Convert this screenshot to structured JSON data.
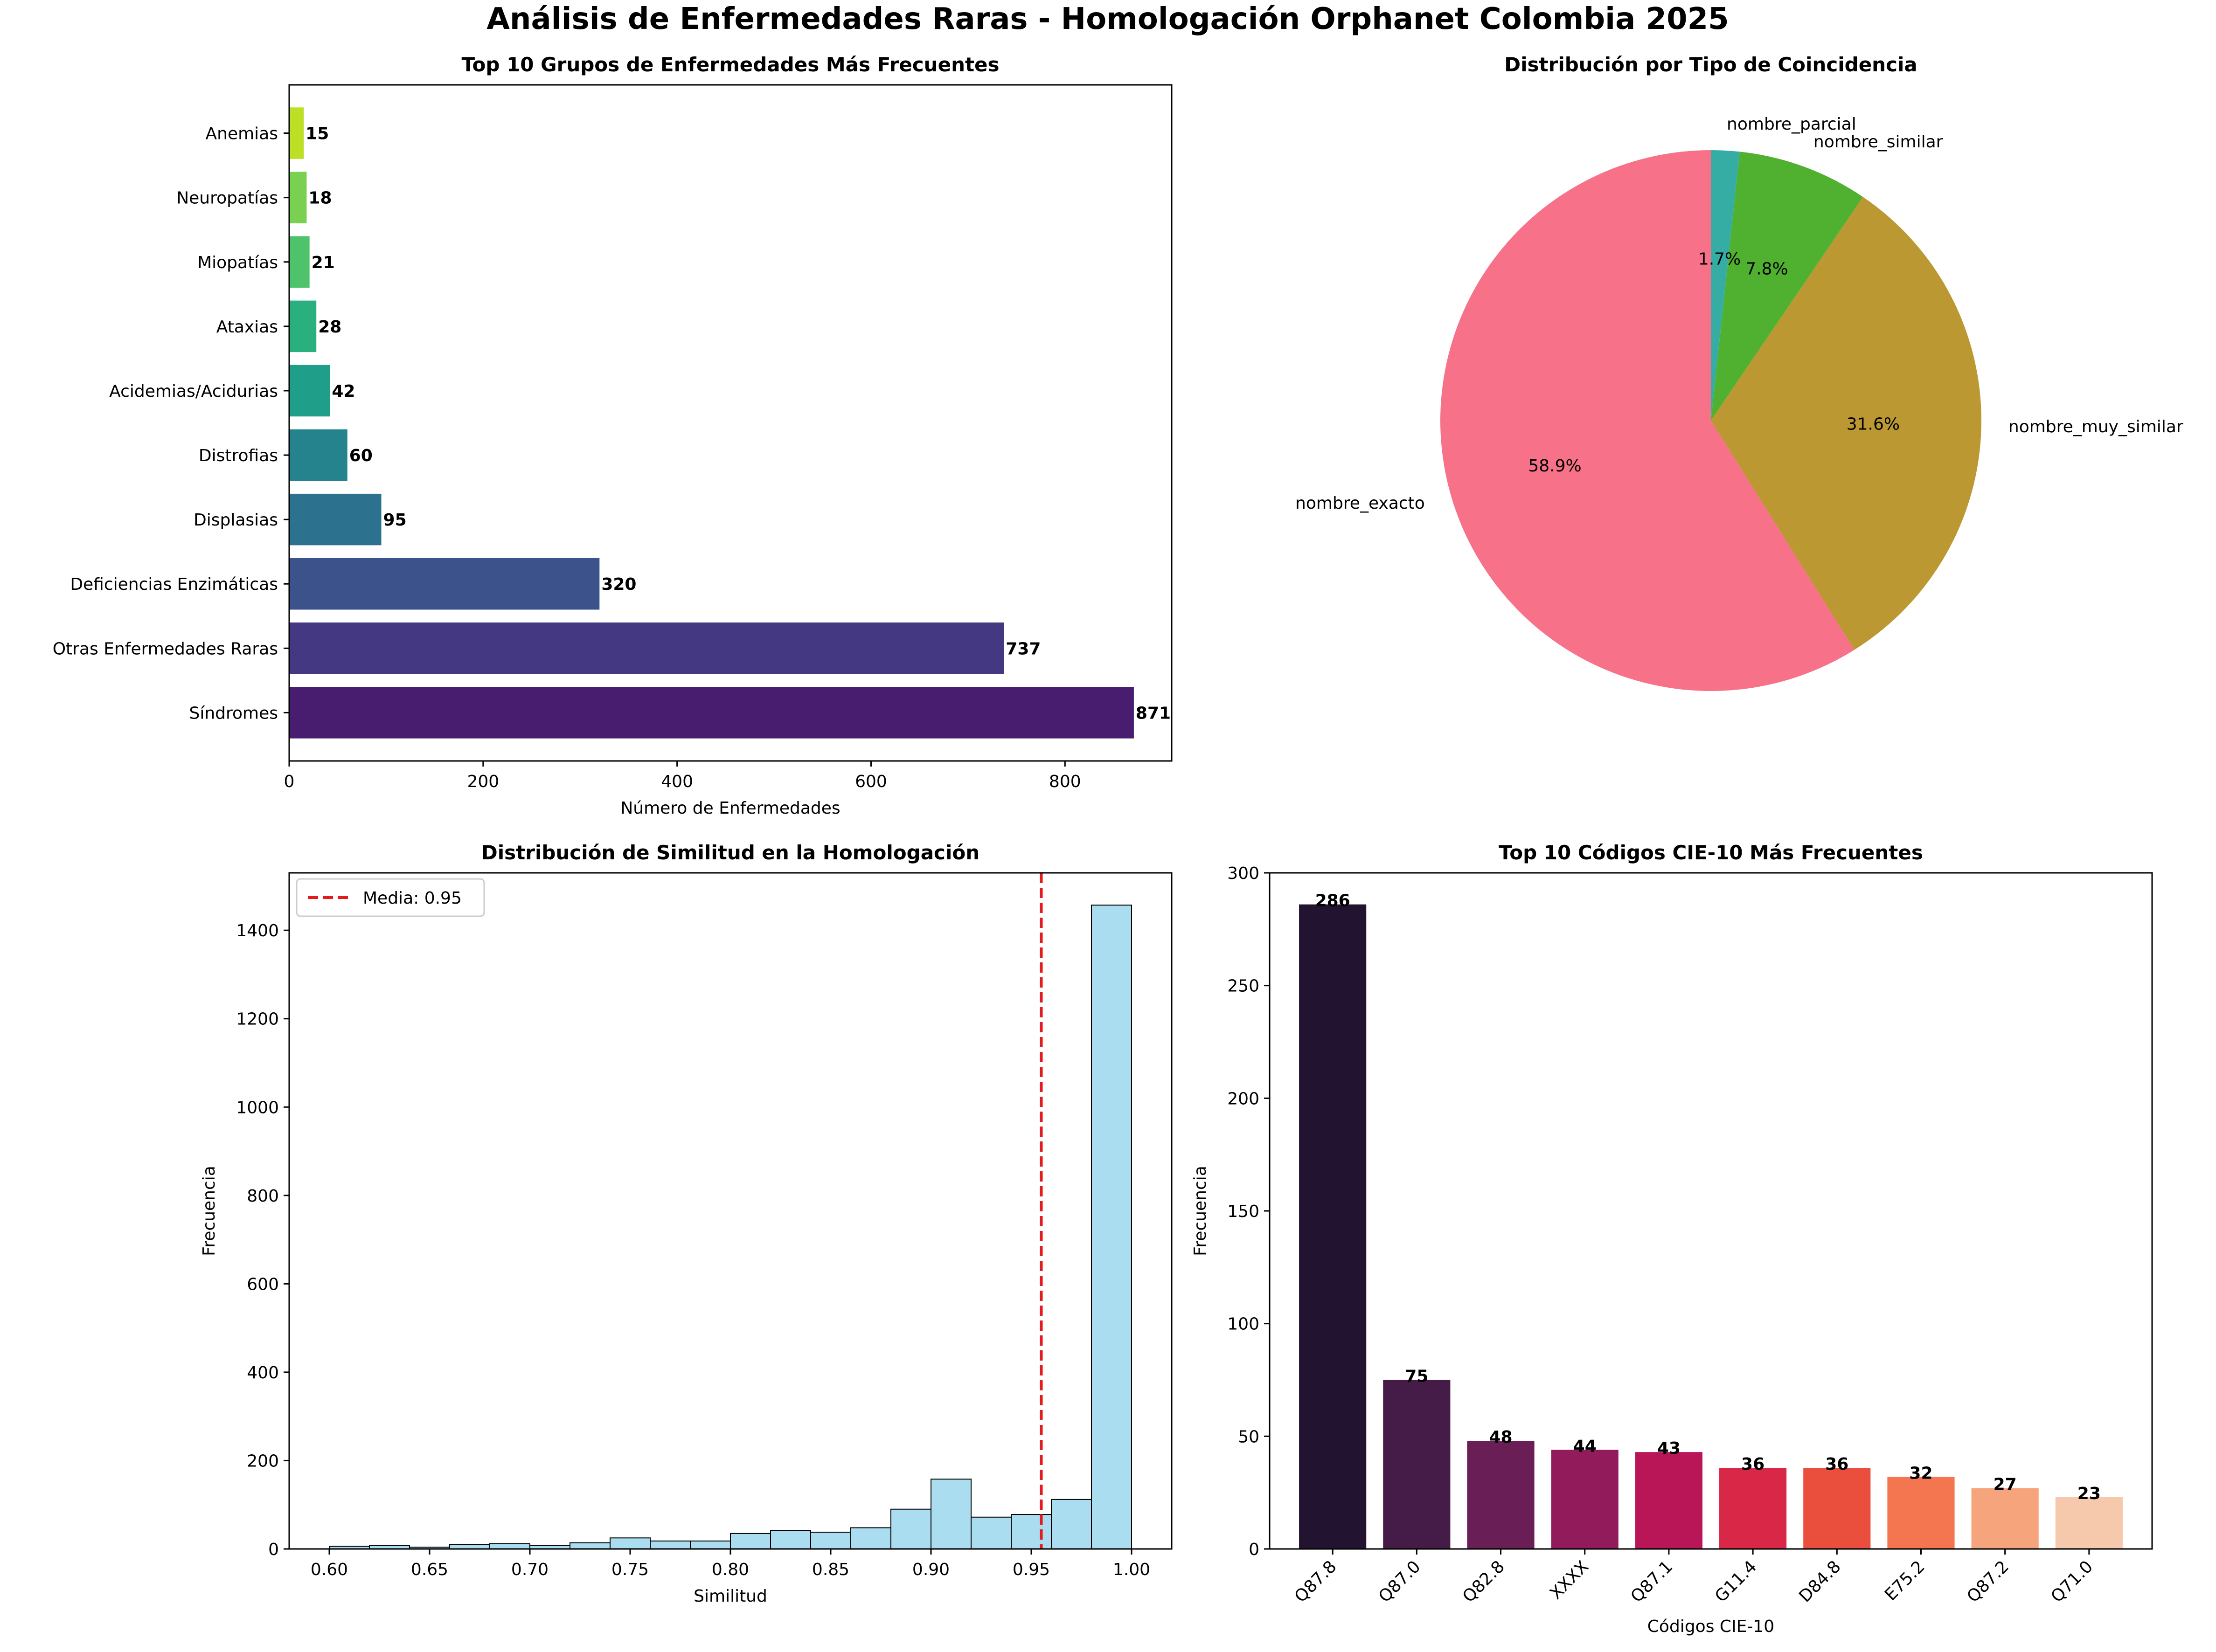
{
  "figure": {
    "suptitle": "Análisis de Enfermedades Raras - Homologación Orphanet Colombia 2025"
  },
  "chart_data": [
    {
      "type": "bar",
      "orientation": "horizontal",
      "title": "Top 10 Grupos de Enfermedades Más Frecuentes",
      "xlabel": "Número de Enfermedades",
      "ylabel": "",
      "categories": [
        "Síndromes",
        "Otras Enfermedades Raras",
        "Deficiencias Enzimáticas",
        "Displasias",
        "Distrofias",
        "Acidemias/Acidurias",
        "Ataxias",
        "Miopatías",
        "Neuropatías",
        "Anemias"
      ],
      "values": [
        871,
        737,
        320,
        95,
        60,
        42,
        28,
        21,
        18,
        15
      ],
      "value_labels": [
        "871",
        "737",
        "320",
        "95",
        "60",
        "42",
        "28",
        "21",
        "18",
        "15"
      ],
      "colors": [
        "#481c6e",
        "#453882",
        "#3b528b",
        "#2c718e",
        "#25838d",
        "#1f9e89",
        "#2ab07f",
        "#4ec36b",
        "#7ad151",
        "#bddf26"
      ],
      "xlim": [
        0,
        910
      ],
      "xticks": [
        0,
        200,
        400,
        600,
        800
      ],
      "xtick_labels": [
        "0",
        "200",
        "400",
        "600",
        "800"
      ]
    },
    {
      "type": "pie",
      "title": "Distribución por Tipo de Coincidencia",
      "labels": [
        "nombre_exacto",
        "nombre_muy_similar",
        "nombre_similar",
        "nombre_parcial"
      ],
      "values": [
        58.9,
        31.6,
        7.8,
        1.7
      ],
      "pct_labels": [
        "58.9%",
        "31.6%",
        "7.8%",
        "1.7%"
      ],
      "colors": [
        "#f77189",
        "#bb9832",
        "#50b131",
        "#36ada4"
      ],
      "start_angle": 90,
      "direction": "counterclockwise"
    },
    {
      "type": "histogram",
      "title": "Distribución de Similitud en la Homologación",
      "xlabel": "Similitud",
      "ylabel": "Frecuencia",
      "bin_edges": [
        0.6,
        0.62,
        0.64,
        0.66,
        0.68,
        0.7,
        0.72,
        0.74,
        0.76,
        0.78,
        0.8,
        0.82,
        0.84,
        0.86,
        0.88,
        0.9,
        0.92,
        0.94,
        0.96,
        0.98,
        1.0
      ],
      "counts": [
        6,
        8,
        4,
        10,
        12,
        8,
        14,
        25,
        18,
        18,
        35,
        42,
        38,
        48,
        90,
        158,
        72,
        78,
        112,
        1457
      ],
      "xlim": [
        0.58,
        1.02
      ],
      "ylim": [
        0,
        1530
      ],
      "xticks": [
        0.6,
        0.65,
        0.7,
        0.75,
        0.8,
        0.85,
        0.9,
        0.95,
        1.0
      ],
      "xtick_labels": [
        "0.60",
        "0.65",
        "0.70",
        "0.75",
        "0.80",
        "0.85",
        "0.90",
        "0.95",
        "1.00"
      ],
      "yticks": [
        0,
        200,
        400,
        600,
        800,
        1000,
        1200,
        1400
      ],
      "ytick_labels": [
        "0",
        "200",
        "400",
        "600",
        "800",
        "1000",
        "1200",
        "1400"
      ],
      "bar_color": "#87ceeb",
      "mean_line": {
        "x": 0.955,
        "label": "Media: 0.95",
        "color": "#e41a1c"
      },
      "legend": {
        "position": "upper-left"
      }
    },
    {
      "type": "bar",
      "orientation": "vertical",
      "title": "Top 10 Códigos CIE-10 Más Frecuentes",
      "xlabel": "Códigos CIE-10",
      "ylabel": "Frecuencia",
      "categories": [
        "Q87.8",
        "Q87.0",
        "Q82.8",
        "XXXX",
        "Q87.1",
        "G11.4",
        "D84.8",
        "E75.2",
        "Q87.2",
        "Q71.0"
      ],
      "values": [
        286,
        75,
        48,
        44,
        43,
        36,
        36,
        32,
        27,
        23
      ],
      "value_labels": [
        "286",
        "75",
        "48",
        "44",
        "43",
        "36",
        "36",
        "32",
        "27",
        "23"
      ],
      "colors": [
        "#221331",
        "#451c47",
        "#691f55",
        "#921c5b",
        "#b91657",
        "#d92847",
        "#ea4e3c",
        "#f37651",
        "#f6a47c",
        "#f6c9ac"
      ],
      "ylim": [
        0,
        300
      ],
      "yticks": [
        0,
        50,
        100,
        150,
        200,
        250,
        300
      ],
      "ytick_labels": [
        "0",
        "50",
        "100",
        "150",
        "200",
        "250",
        "300"
      ]
    }
  ]
}
